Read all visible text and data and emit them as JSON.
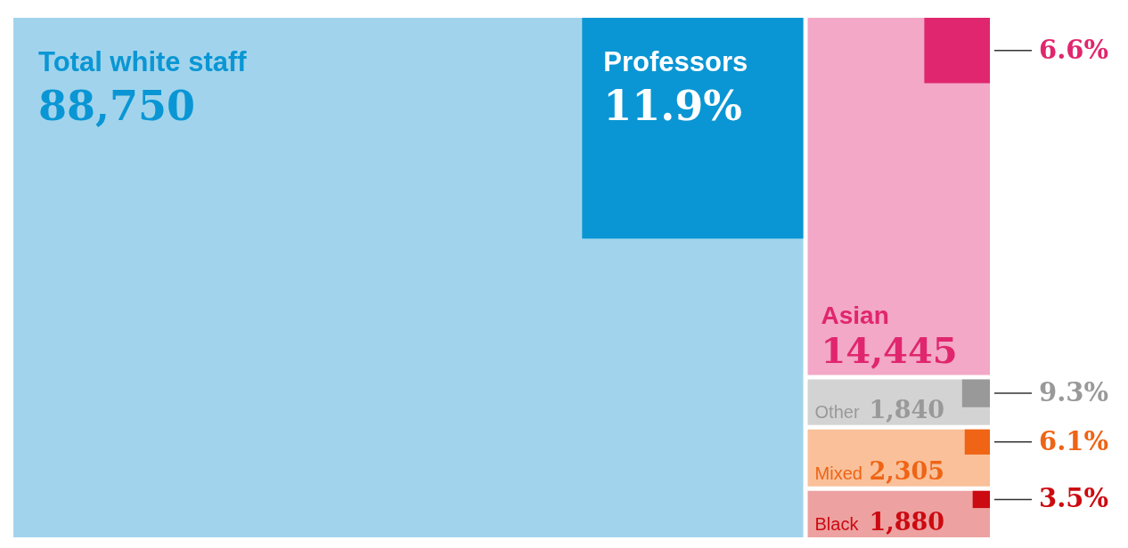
{
  "chart_data": {
    "type": "other",
    "categories": [
      "Total white staff",
      "Asian",
      "Other",
      "Mixed",
      "Black"
    ],
    "values": [
      88750,
      14445,
      1840,
      2305,
      1880
    ],
    "value_labels": [
      "88,750",
      "14,445",
      "1,840",
      "2,305",
      "1,880"
    ],
    "colors": [
      "#a1d4ec",
      "#f2a8c6",
      "#d3d3d3",
      "#f9c09a",
      "#eda1a1"
    ],
    "series": [
      {
        "name": "Professors",
        "values": [
          11.9,
          6.6,
          9.3,
          6.1,
          3.5
        ],
        "value_labels": [
          "11.9%",
          "6.6%",
          "9.3%",
          "6.1%",
          "3.5%"
        ],
        "colors": [
          "#0a96d4",
          "#e0266e",
          "#999999",
          "#ef6415",
          "#cc0a11"
        ]
      }
    ]
  }
}
